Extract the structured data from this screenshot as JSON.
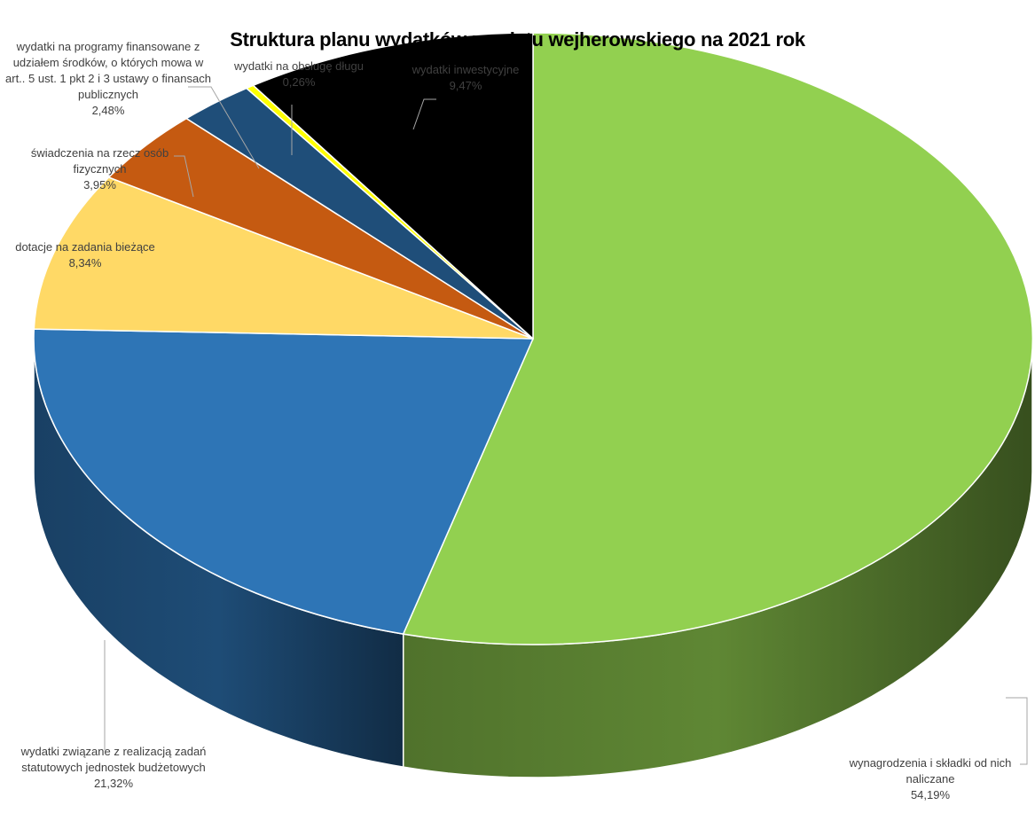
{
  "chart_data": {
    "type": "pie",
    "title": "Struktura planu wydatków powiatu wejherowskiego na 2021 rok",
    "slices": [
      {
        "label": "wynagrodzenia i składki od nich naliczane",
        "value": 54.19,
        "value_label": "54,19%",
        "color": "#92d050"
      },
      {
        "label": "wydatki związane z realizacją zadań statutowych jednostek budżetowych",
        "value": 21.32,
        "value_label": "21,32%",
        "color": "#2e75b6"
      },
      {
        "label": "dotacje na zadania bieżące",
        "value": 8.34,
        "value_label": "8,34%",
        "color": "#ffd966"
      },
      {
        "label": "świadczenia na rzecz osób fizycznych",
        "value": 3.95,
        "value_label": "3,95%",
        "color": "#c55a11"
      },
      {
        "label": "wydatki na programy finansowane z udziałem środków, o których mowa w art.. 5 ust. 1 pkt 2 i 3 ustawy o finansach publicznych",
        "value": 2.48,
        "value_label": "2,48%",
        "color": "#1f4e79"
      },
      {
        "label": "wydatki na obsługę długu",
        "value": 0.26,
        "value_label": "0,26%",
        "color": "#ffff00"
      },
      {
        "label": "wydatki inwestycyjne",
        "value": 9.47,
        "value_label": "9,47%",
        "color": "#000000"
      }
    ]
  }
}
